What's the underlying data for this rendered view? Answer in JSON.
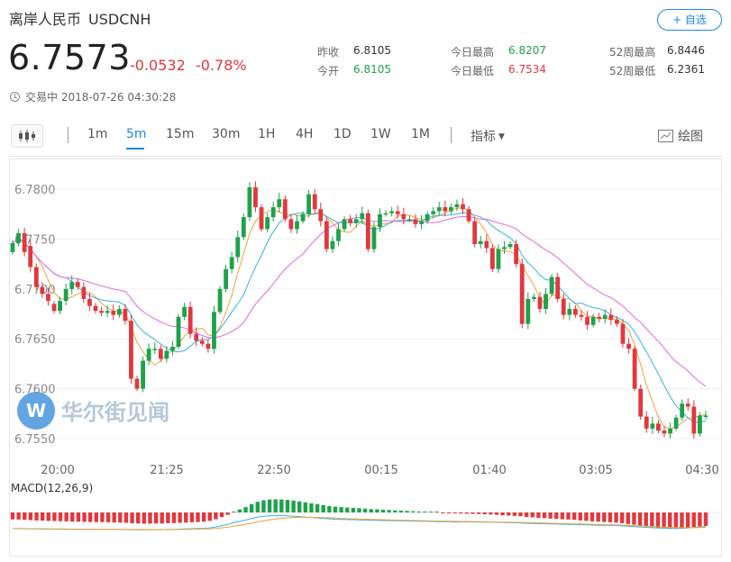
{
  "header": {
    "name": "离岸人民币",
    "symbol": "USDCNH",
    "price": "6.7573",
    "change": "-0.0532",
    "change_pct": "-0.78%",
    "status": "交易中 2018-07-26 04:30:28",
    "add_watch": "+ 自选"
  },
  "stats": {
    "prev_close_label": "昨收",
    "prev_close": "6.8105",
    "open_label": "今开",
    "open": "6.8105",
    "high_label": "今日最高",
    "high": "6.8207",
    "low_label": "今日最低",
    "low": "6.7534",
    "w52_high_label": "52周最高",
    "w52_high": "6.8446",
    "w52_low_label": "52周最低",
    "w52_low": "6.2361"
  },
  "toolbar": {
    "intervals": [
      "1m",
      "5m",
      "15m",
      "30m",
      "1H",
      "4H",
      "1D",
      "1W",
      "1M"
    ],
    "active_interval": "5m",
    "indicator_label": "指标",
    "draw_label": "绘图"
  },
  "colors": {
    "up": "#1fa14b",
    "down": "#e0383e",
    "accent": "#1e88e5",
    "ma_fast": "#f2a13b",
    "ma_mid": "#39b2e0",
    "ma_slow": "#e668d8"
  },
  "watermark": "华尔街见闻",
  "chart_data": {
    "type": "candlestick",
    "ylim": [
      6.754,
      6.782
    ],
    "y_ticks": [
      "6.7800",
      "6.7750",
      "6.7700",
      "6.7650",
      "6.7600",
      "6.7550"
    ],
    "x_ticks": [
      "20:00",
      "21:25",
      "22:50",
      "00:15",
      "01:40",
      "03:05",
      "04:30"
    ],
    "macd_label": "MACD(12,26,9)",
    "candles": [
      [
        6.7737,
        6.7746
      ],
      [
        6.7746,
        6.7756
      ],
      [
        6.7756,
        6.7737
      ],
      [
        6.7743,
        6.7722
      ],
      [
        6.7722,
        6.7702
      ],
      [
        6.7702,
        6.7695
      ],
      [
        6.7695,
        6.7688
      ],
      [
        6.7685,
        6.7678
      ],
      [
        6.7678,
        6.7688
      ],
      [
        6.7688,
        6.77
      ],
      [
        6.77,
        6.7707
      ],
      [
        6.7707,
        6.7702
      ],
      [
        6.7702,
        6.769
      ],
      [
        6.769,
        6.7683
      ],
      [
        6.7683,
        6.7678
      ],
      [
        6.7678,
        6.7676
      ],
      [
        6.7676,
        6.7678
      ],
      [
        6.7678,
        6.7674
      ],
      [
        6.7674,
        6.768
      ],
      [
        6.768,
        6.7668
      ],
      [
        6.7668,
        6.761
      ],
      [
        6.761,
        6.76
      ],
      [
        6.76,
        6.7628
      ],
      [
        6.7628,
        6.764
      ],
      [
        6.764,
        6.764
      ],
      [
        6.764,
        6.763
      ],
      [
        6.763,
        6.7638
      ],
      [
        6.7638,
        6.7642
      ],
      [
        6.7642,
        6.7672
      ],
      [
        6.7672,
        6.7682
      ],
      [
        6.7682,
        6.7655
      ],
      [
        6.7655,
        6.7648
      ],
      [
        6.7648,
        6.7645
      ],
      [
        6.7645,
        6.764
      ],
      [
        6.764,
        6.7677
      ],
      [
        6.7677,
        6.77
      ],
      [
        6.77,
        6.772
      ],
      [
        6.772,
        6.7732
      ],
      [
        6.7732,
        6.7752
      ],
      [
        6.7752,
        6.7772
      ],
      [
        6.7772,
        6.7802
      ],
      [
        6.7802,
        6.7782
      ],
      [
        6.7782,
        6.776
      ],
      [
        6.776,
        6.7772
      ],
      [
        6.7772,
        6.7782
      ],
      [
        6.7782,
        6.779
      ],
      [
        6.779,
        6.777
      ],
      [
        6.777,
        6.776
      ],
      [
        6.776,
        6.7768
      ],
      [
        6.7768,
        6.7775
      ],
      [
        6.7775,
        6.7795
      ],
      [
        6.7795,
        6.778
      ],
      [
        6.778,
        6.7768
      ],
      [
        6.7768,
        6.774
      ],
      [
        6.774,
        6.7748
      ],
      [
        6.7748,
        6.776
      ],
      [
        6.776,
        6.777
      ],
      [
        6.777,
        6.7766
      ],
      [
        6.7766,
        6.777
      ],
      [
        6.777,
        6.7776
      ],
      [
        6.7776,
        6.774
      ],
      [
        6.774,
        6.7762
      ],
      [
        6.7762,
        6.7775
      ],
      [
        6.7775,
        6.7776
      ],
      [
        6.7776,
        6.7778
      ],
      [
        6.7778,
        6.7775
      ],
      [
        6.7775,
        6.777
      ],
      [
        6.777,
        6.777
      ],
      [
        6.777,
        6.7765
      ],
      [
        6.7765,
        6.7768
      ],
      [
        6.7768,
        6.7775
      ],
      [
        6.7775,
        6.7778
      ],
      [
        6.7778,
        6.7782
      ],
      [
        6.7782,
        6.7778
      ],
      [
        6.7778,
        6.7782
      ],
      [
        6.7782,
        6.7785
      ],
      [
        6.7785,
        6.778
      ],
      [
        6.778,
        6.7768
      ],
      [
        6.7768,
        6.7745
      ],
      [
        6.7745,
        6.7748
      ],
      [
        6.7748,
        6.7741
      ],
      [
        6.7741,
        6.772
      ],
      [
        6.772,
        6.774
      ],
      [
        6.774,
        6.7742
      ],
      [
        6.7742,
        6.7745
      ],
      [
        6.7745,
        6.7725
      ],
      [
        6.7725,
        6.7665
      ],
      [
        6.7665,
        6.769
      ],
      [
        6.769,
        6.7692
      ],
      [
        6.7692,
        6.768
      ],
      [
        6.768,
        6.7695
      ],
      [
        6.7695,
        6.7712
      ],
      [
        6.7712,
        6.769
      ],
      [
        6.769,
        6.7674
      ],
      [
        6.7674,
        6.768
      ],
      [
        6.768,
        6.7674
      ],
      [
        6.7674,
        6.7672
      ],
      [
        6.7672,
        6.7664
      ],
      [
        6.7664,
        6.7672
      ],
      [
        6.7672,
        6.767
      ],
      [
        6.767,
        6.7674
      ],
      [
        6.7674,
        6.7669
      ],
      [
        6.7669,
        6.7665
      ],
      [
        6.7665,
        6.7645
      ],
      [
        6.7645,
        6.764
      ],
      [
        6.764,
        6.76
      ],
      [
        6.76,
        6.7572
      ],
      [
        6.7572,
        6.756
      ],
      [
        6.756,
        6.7565
      ],
      [
        6.7565,
        6.7558
      ],
      [
        6.7558,
        6.7555
      ],
      [
        6.7555,
        6.756
      ],
      [
        6.756,
        6.7571
      ],
      [
        6.7571,
        6.7585
      ],
      [
        6.7585,
        6.7582
      ],
      [
        6.7582,
        6.7555
      ],
      [
        6.7555,
        6.7573
      ],
      [
        6.7573,
        6.7573
      ]
    ],
    "macd_hist": [
      -0.45,
      -0.46,
      -0.48,
      -0.5,
      -0.52,
      -0.53,
      -0.55,
      -0.56,
      -0.57,
      -0.58,
      -0.6,
      -0.6,
      -0.61,
      -0.62,
      -0.63,
      -0.63,
      -0.64,
      -0.65,
      -0.66,
      -0.67,
      -0.7,
      -0.72,
      -0.73,
      -0.73,
      -0.72,
      -0.72,
      -0.7,
      -0.69,
      -0.67,
      -0.66,
      -0.64,
      -0.62,
      -0.6,
      -0.55,
      -0.45,
      -0.3,
      -0.15,
      0.05,
      0.2,
      0.35,
      0.55,
      0.7,
      0.8,
      0.85,
      0.86,
      0.85,
      0.82,
      0.78,
      0.72,
      0.66,
      0.6,
      0.55,
      0.48,
      0.42,
      0.38,
      0.35,
      0.32,
      0.3,
      0.28,
      0.25,
      0.22,
      0.2,
      0.18,
      0.16,
      0.14,
      0.12,
      0.1,
      0.08,
      0.06,
      0.04,
      0.02,
      0.0,
      -0.02,
      -0.04,
      -0.06,
      -0.07,
      -0.08,
      -0.09,
      -0.1,
      -0.12,
      -0.13,
      -0.15,
      -0.18,
      -0.2,
      -0.22,
      -0.25,
      -0.3,
      -0.32,
      -0.35,
      -0.37,
      -0.4,
      -0.42,
      -0.44,
      -0.46,
      -0.48,
      -0.52,
      -0.55,
      -0.58,
      -0.6,
      -0.62,
      -0.64,
      -0.66,
      -0.7,
      -0.75,
      -0.8,
      -0.85,
      -0.9,
      -0.95,
      -1.0,
      -1.02,
      -1.05,
      -1.06,
      -1.05,
      -1.02,
      -0.95,
      -0.9,
      -0.88
    ]
  }
}
